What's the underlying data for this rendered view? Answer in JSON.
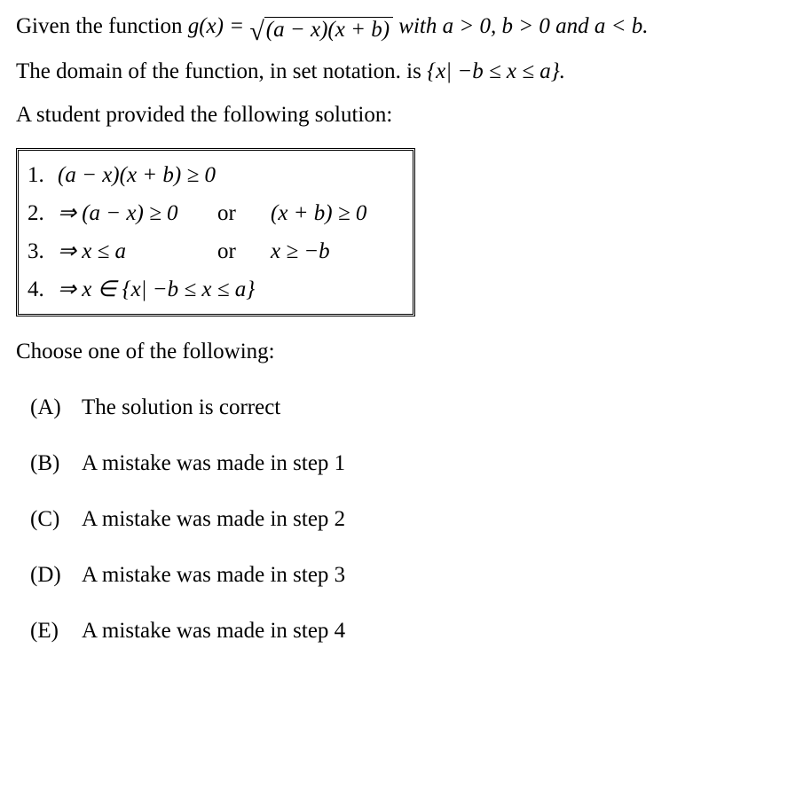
{
  "problem": {
    "line1_prefix": "Given the function ",
    "func_lhs": "g(x) = ",
    "root_expr_a": "(a − x)",
    "root_expr_b": "(x + b)",
    "line1_suffix": "  with a > 0, b > 0 and a < b.",
    "line2_prefix": "The domain of the function, in set notation. is ",
    "line2_set": "{x| −b ≤ x ≤ a}.",
    "line3": "A student provided the following solution:"
  },
  "steps": {
    "n1": "1.",
    "s1": "(a − x)(x + b) ≥ 0",
    "n2": "2.",
    "s2a": "⇒ (a − x) ≥ 0",
    "or2": "or",
    "s2b": "(x + b) ≥ 0",
    "n3": "3.",
    "s3a": "⇒ x ≤ a",
    "or3": "or",
    "s3b": "x ≥ −b",
    "n4": "4.",
    "s4": "⇒ x ∈ {x| −b ≤ x ≤ a}"
  },
  "prompt2": "Choose one of the following:",
  "choices": {
    "a_label": "(A)",
    "a_text": "The solution is correct",
    "b_label": "(B)",
    "b_text": "A mistake was made in step 1",
    "c_label": "(C)",
    "c_text": "A mistake was made in step 2",
    "d_label": "(D)",
    "d_text": "A mistake was made in step 3",
    "e_label": "(E)",
    "e_text": "A mistake was made in step 4"
  },
  "style": {
    "font_family": "Times New Roman",
    "font_size_pt": 19,
    "text_color": "#000000",
    "background_color": "#ffffff",
    "box_border": "double"
  }
}
